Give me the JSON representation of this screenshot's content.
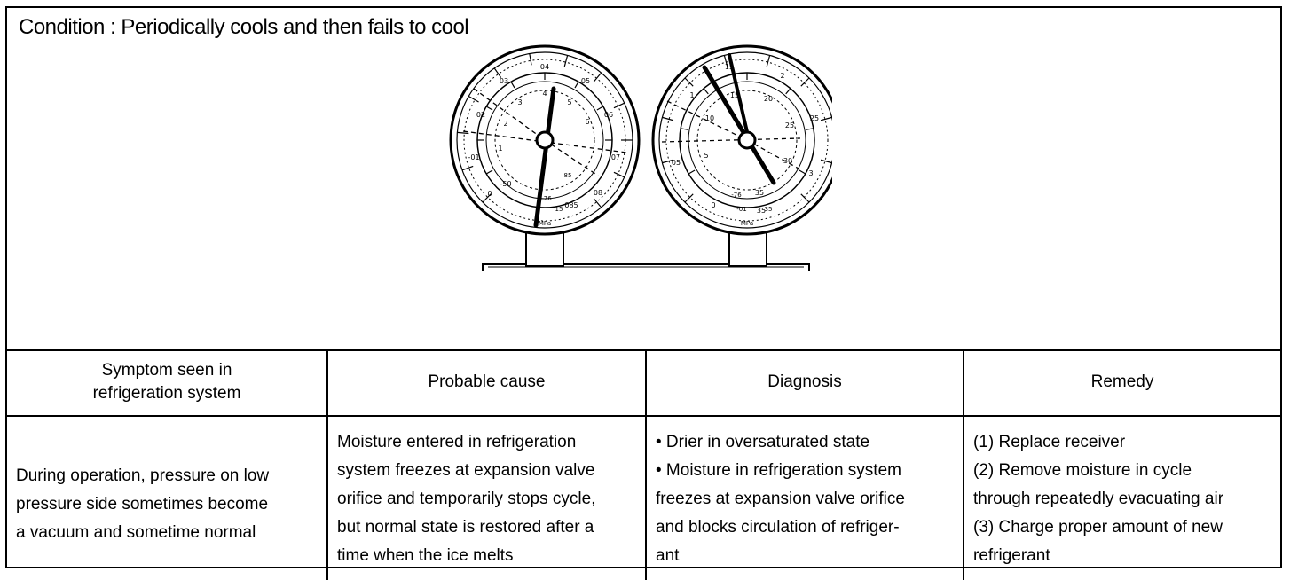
{
  "condition": {
    "title": "Condition : Periodically cools and then fails to cool"
  },
  "gauges": {
    "low": {
      "outer_scale": [
        "0",
        "-01",
        "02",
        "03",
        "04",
        "05",
        "06",
        "07",
        "08",
        "085"
      ],
      "inner_scale": [
        "-50",
        "1",
        "2",
        "3",
        "4",
        "5",
        "6"
      ],
      "labels": [
        "MPa",
        "-76",
        "15",
        "85"
      ]
    },
    "high": {
      "outer_scale": [
        "0",
        "05",
        "1",
        "15",
        "2",
        "25",
        "3",
        "35"
      ],
      "inner_scale": [
        "5",
        "10",
        "15",
        "20",
        "25",
        "30",
        "35"
      ],
      "labels": [
        "MPa",
        "-76",
        "-01",
        "35"
      ]
    }
  },
  "table": {
    "headers": {
      "symptom": [
        "Symptom seen in",
        "refrigeration system"
      ],
      "cause": "Probable cause",
      "diagnosis": "Diagnosis",
      "remedy": "Remedy"
    },
    "row": {
      "symptom": [
        "During operation, pressure on low",
        "pressure side sometimes become",
        "a vacuum and sometime normal"
      ],
      "cause": [
        "Moisture entered in refrigeration",
        "system freezes at expansion valve",
        "orifice and temporarily stops cycle,",
        "but normal state is restored after a",
        "time when the ice melts"
      ],
      "diagnosis": [
        "• Drier in oversaturated state",
        "• Moisture in refrigeration system",
        "freezes at expansion valve orifice",
        "and blocks circulation of refriger-",
        "ant"
      ],
      "remedy": [
        "(1) Replace receiver",
        "(2) Remove moisture in cycle",
        "through repeatedly evacuating air",
        "(3) Charge proper amount of new",
        "refrigerant"
      ]
    }
  }
}
